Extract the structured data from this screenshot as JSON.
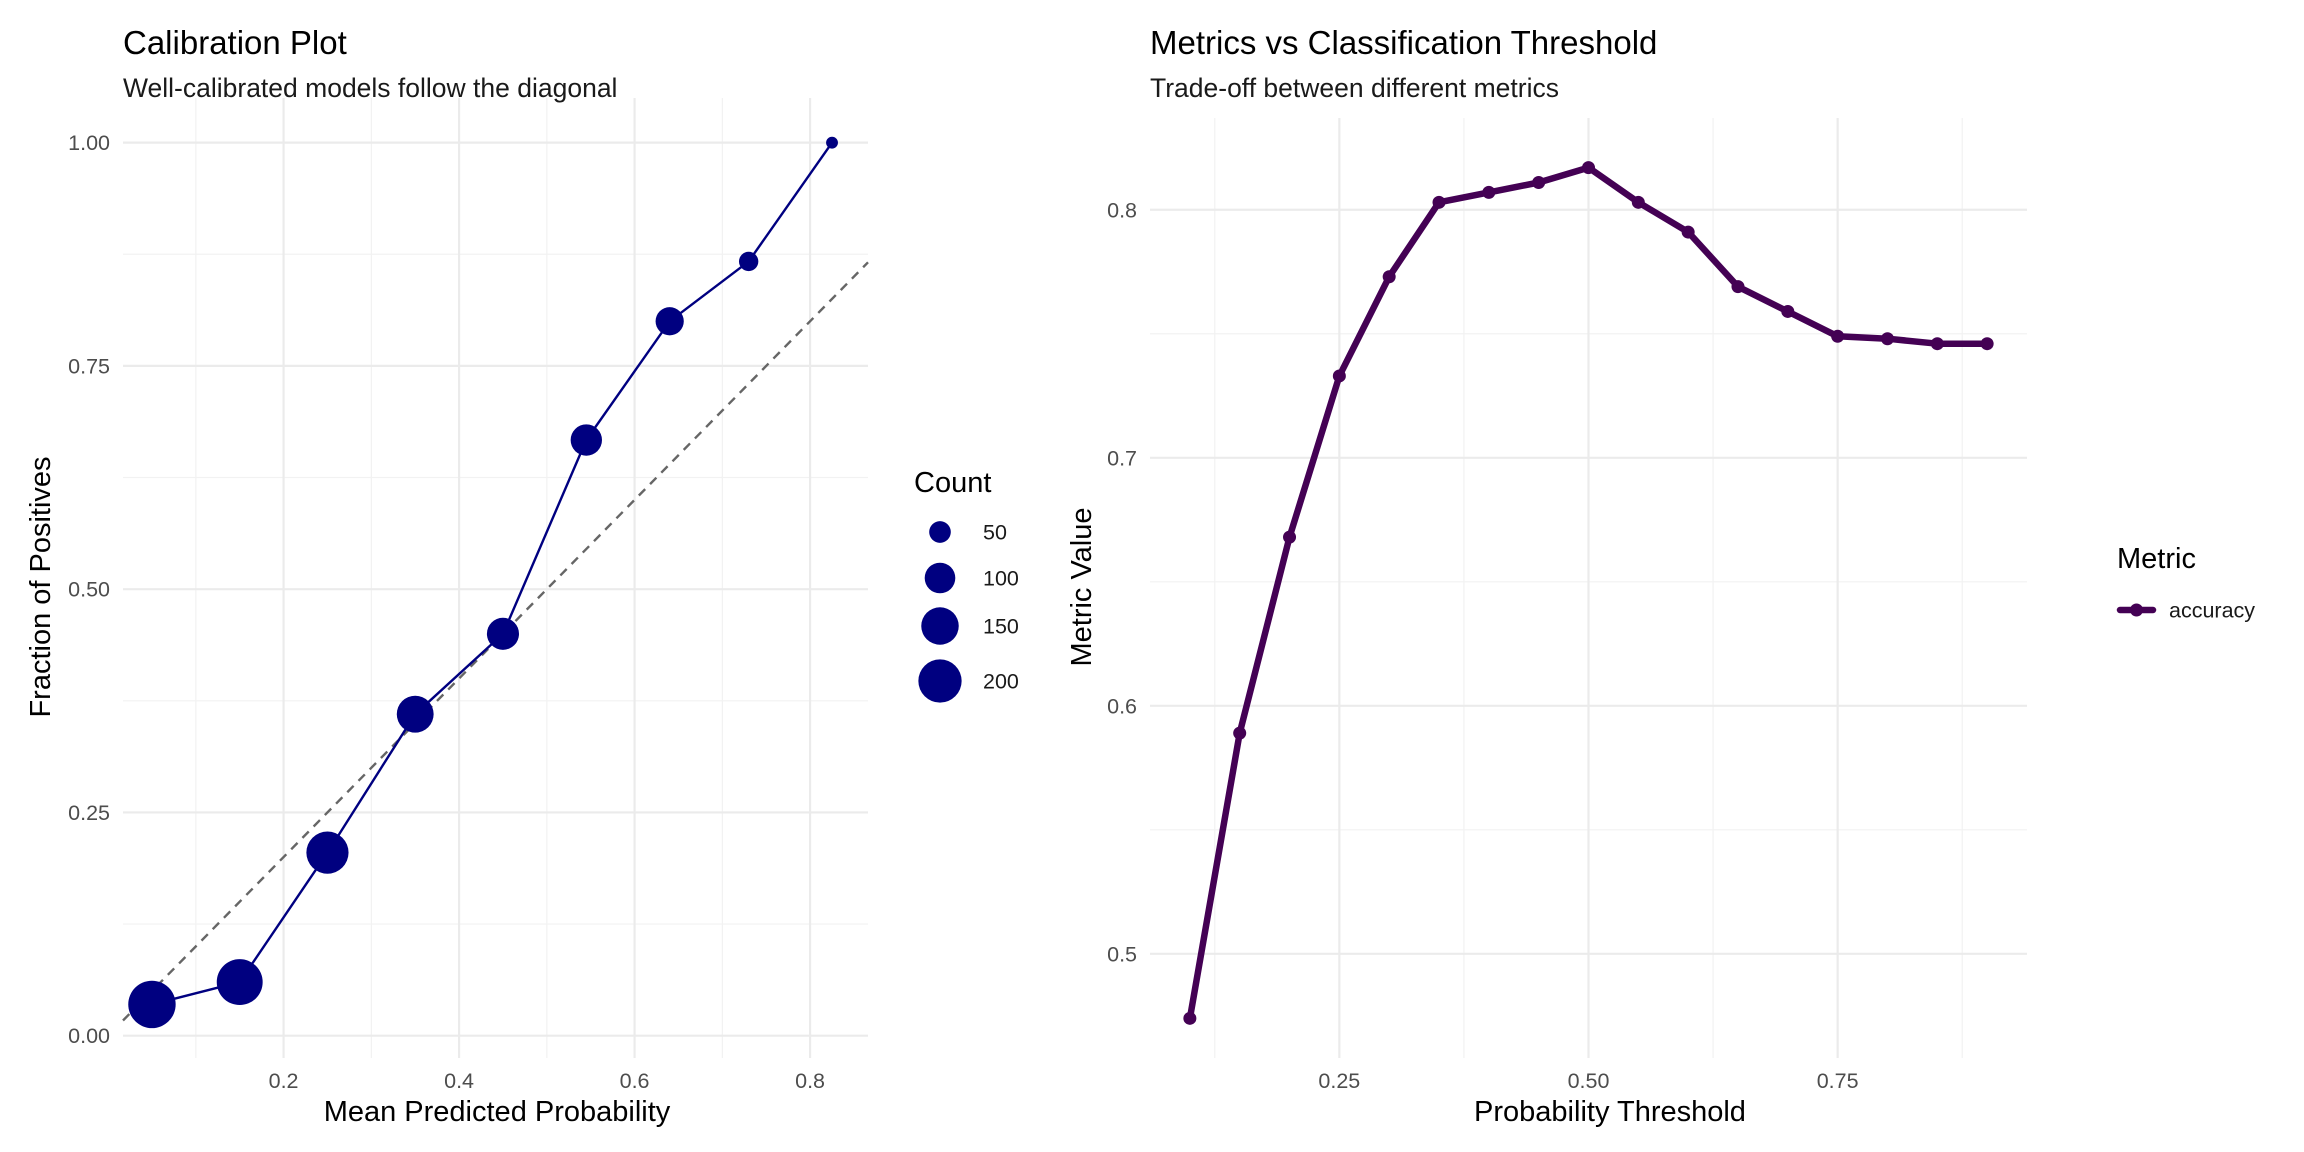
{
  "chart_data": [
    {
      "type": "scatter",
      "title": "Calibration Plot",
      "subtitle": "Well-calibrated models follow the diagonal",
      "xlabel": "Mean Predicted Probability",
      "ylabel": "Fraction of Positives",
      "xlim": [
        0.017,
        0.866
      ],
      "ylim": [
        -0.025,
        1.05
      ],
      "x_ticks": [
        0.2,
        0.4,
        0.6,
        0.8
      ],
      "x_tick_labels": [
        "0.2",
        "0.4",
        "0.6",
        "0.8"
      ],
      "y_ticks": [
        0.0,
        0.25,
        0.5,
        0.75,
        1.0
      ],
      "y_tick_labels": [
        "0.00",
        "0.25",
        "0.50",
        "0.75",
        "1.00"
      ],
      "grid": true,
      "legend_position": "right",
      "reference_line": {
        "style": "dashed",
        "color": "#666666",
        "from": [
          0,
          0
        ],
        "to": [
          1,
          1
        ]
      },
      "series": [
        {
          "color": "#000080",
          "points": [
            {
              "x": 0.05,
              "y": 0.035,
              "count": 240
            },
            {
              "x": 0.15,
              "y": 0.06,
              "count": 225
            },
            {
              "x": 0.25,
              "y": 0.205,
              "count": 190
            },
            {
              "x": 0.35,
              "y": 0.36,
              "count": 145
            },
            {
              "x": 0.45,
              "y": 0.45,
              "count": 110
            },
            {
              "x": 0.545,
              "y": 0.667,
              "count": 105
            },
            {
              "x": 0.64,
              "y": 0.8,
              "count": 85
            },
            {
              "x": 0.73,
              "y": 0.867,
              "count": 40
            },
            {
              "x": 0.825,
              "y": 1.0,
              "count": 15
            }
          ]
        }
      ],
      "size_legend": {
        "title": "Count",
        "entries": [
          {
            "label": "50",
            "count": 50
          },
          {
            "label": "100",
            "count": 100
          },
          {
            "label": "150",
            "count": 150
          },
          {
            "label": "200",
            "count": 200
          }
        ]
      }
    },
    {
      "type": "line",
      "title": "Metrics vs Classification Threshold",
      "subtitle": "Trade-off between different metrics",
      "xlabel": "Probability Threshold",
      "ylabel": "Metric Value",
      "xlim": [
        0.06,
        0.94
      ],
      "ylim": [
        0.458,
        0.837
      ],
      "x_ticks": [
        0.25,
        0.5,
        0.75
      ],
      "x_tick_labels": [
        "0.25",
        "0.50",
        "0.75"
      ],
      "y_ticks": [
        0.5,
        0.6,
        0.7,
        0.8
      ],
      "y_tick_labels": [
        "0.5",
        "0.6",
        "0.7",
        "0.8"
      ],
      "grid": true,
      "legend_position": "right",
      "legend_title": "Metric",
      "series": [
        {
          "name": "accuracy",
          "color": "#440154",
          "x": [
            0.1,
            0.15,
            0.2,
            0.25,
            0.3,
            0.35,
            0.4,
            0.45,
            0.5,
            0.55,
            0.6,
            0.65,
            0.7,
            0.75,
            0.8,
            0.85,
            0.9
          ],
          "y": [
            0.474,
            0.589,
            0.668,
            0.733,
            0.773,
            0.803,
            0.807,
            0.811,
            0.817,
            0.803,
            0.791,
            0.769,
            0.759,
            0.749,
            0.748,
            0.746,
            0.746
          ]
        }
      ]
    }
  ]
}
